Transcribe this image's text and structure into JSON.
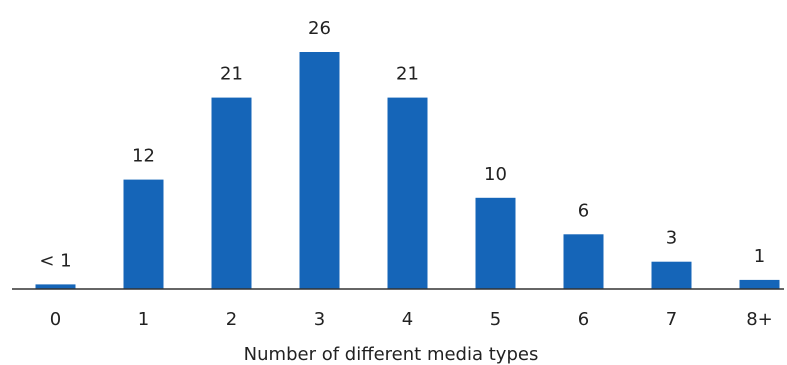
{
  "chart_data": {
    "type": "bar",
    "categories": [
      "0",
      "1",
      "2",
      "3",
      "4",
      "5",
      "6",
      "7",
      "8+"
    ],
    "values": [
      0.5,
      12,
      21,
      26,
      21,
      10,
      6,
      3,
      1
    ],
    "data_labels": [
      "< 1",
      "12",
      "21",
      "26",
      "21",
      "10",
      "6",
      "3",
      "1"
    ],
    "title": "",
    "xlabel": "Number of different media types",
    "ylabel": "",
    "ylim": [
      0,
      26
    ],
    "grid": false,
    "legend": "none",
    "bar_color": "#1565b8",
    "axis_color": "#333333"
  }
}
